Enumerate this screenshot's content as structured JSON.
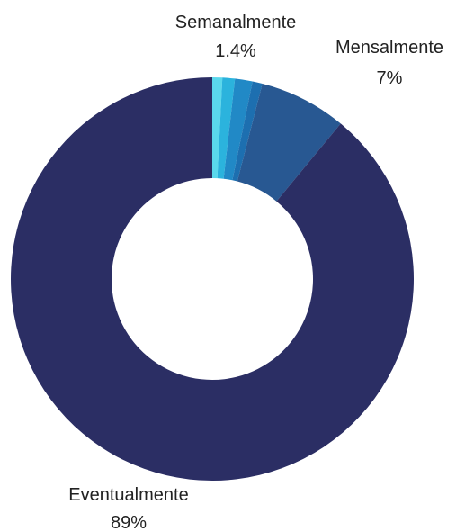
{
  "chart_data": {
    "type": "pie",
    "donut": true,
    "slices": [
      {
        "label": "",
        "value": 0.8,
        "color": "#5ad8ec"
      },
      {
        "label": "",
        "value": 1.0,
        "color": "#2bb3dd"
      },
      {
        "label": "Semanalmente",
        "value": 1.4,
        "color": "#2189c6"
      },
      {
        "label": "",
        "value": 0.8,
        "color": "#1d6fb0"
      },
      {
        "label": "Mensalmente",
        "value": 7.0,
        "color": "#285892"
      },
      {
        "label": "Eventualmente",
        "value": 89.0,
        "color": "#2b2e64"
      }
    ],
    "labels": [
      {
        "name": "Semanalmente",
        "value": "1.4%"
      },
      {
        "name": "Mensalmente",
        "value": "7%"
      },
      {
        "name": "Eventualmente",
        "value": "89%"
      }
    ],
    "legend": "none"
  }
}
